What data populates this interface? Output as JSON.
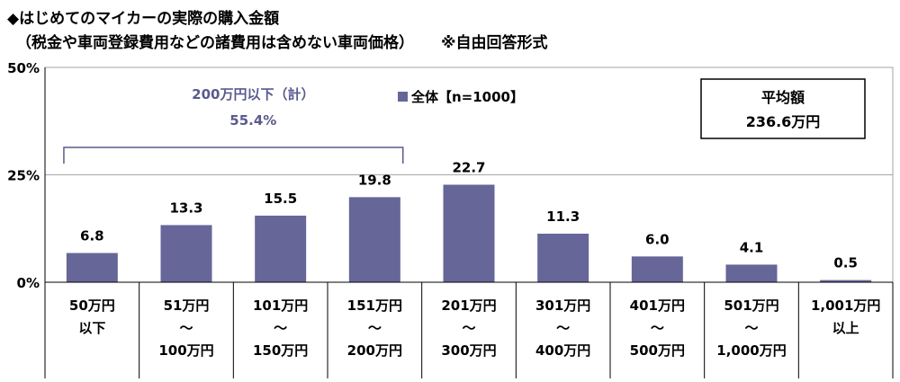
{
  "title": "◆はじめてのマイカーの実際の購入金額",
  "subtitle": "（税金や車両登録費用などの諸費用は含めない車両価格）",
  "answer_format": "※自由回答形式",
  "colors": {
    "bar": "#666699",
    "bracket": "#5a5a8f",
    "bracket_text": "#5a5a8f",
    "grid": "#a6a6a6",
    "frame": "#000000"
  },
  "chart_data": {
    "type": "bar",
    "categories": [
      [
        "50万円",
        "以下"
      ],
      [
        "51万円",
        "～",
        "100万円"
      ],
      [
        "101万円",
        "～",
        "150万円"
      ],
      [
        "151万円",
        "～",
        "200万円"
      ],
      [
        "201万円",
        "～",
        "300万円"
      ],
      [
        "301万円",
        "～",
        "400万円"
      ],
      [
        "401万円",
        "～",
        "500万円"
      ],
      [
        "501万円",
        "～",
        "1,000万円"
      ],
      [
        "1,001万円",
        "以上"
      ]
    ],
    "series": [
      {
        "name": "全体【n=1000】",
        "values": [
          6.8,
          13.3,
          15.5,
          19.8,
          22.7,
          11.3,
          6.0,
          4.1,
          0.5
        ]
      }
    ],
    "value_labels": [
      "6.8",
      "13.3",
      "15.5",
      "19.8",
      "22.7",
      "11.3",
      "6.0",
      "4.1",
      "0.5"
    ],
    "ylim": [
      0,
      50
    ],
    "yticks": [
      0,
      25,
      50
    ],
    "ytick_labels": [
      "0%",
      "25%",
      "50%"
    ],
    "legend": {
      "label": "全体【n=1000】",
      "placement": "top-center"
    },
    "annotation": {
      "label": "200万円以下（計）",
      "value": "55.4%",
      "span_categories": [
        0,
        3
      ]
    },
    "average_box": {
      "label": "平均額",
      "value": "236.6万円",
      "placement": "top-right"
    }
  }
}
